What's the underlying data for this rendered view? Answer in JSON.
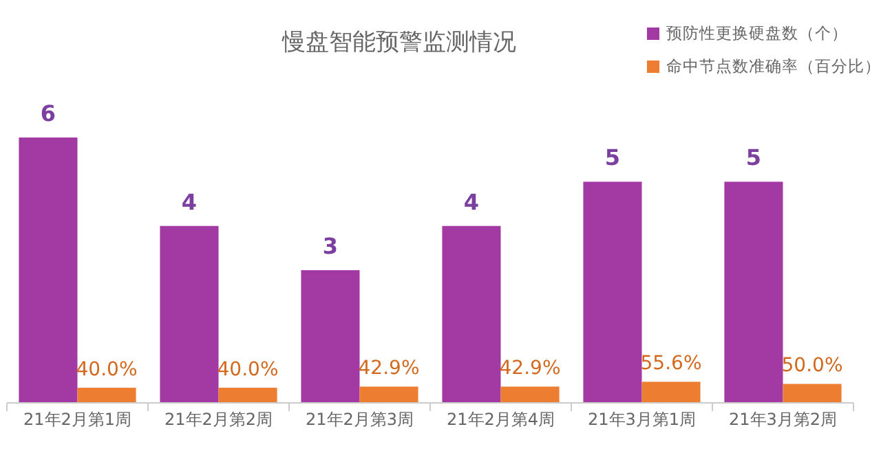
{
  "chart_data": {
    "type": "bar",
    "title": "慢盘智能预警监测情况",
    "categories": [
      "21年2月第1周",
      "21年2月第2周",
      "21年2月第3周",
      "21年2月第4周",
      "21年3月第1周",
      "21年3月第2周"
    ],
    "series": [
      {
        "name": "预防性更换硬盘数（个）",
        "color": "#a33aa3",
        "values": [
          6,
          4,
          3,
          4,
          5,
          5
        ]
      },
      {
        "name": "命中节点数准确率（百分比）",
        "color": "#ed7d31",
        "axis": "y2",
        "values": [
          40.0,
          40.0,
          42.9,
          42.9,
          55.6,
          50.0
        ],
        "value_labels": [
          "40.0%",
          "40.0%",
          "42.9%",
          "42.9%",
          "55.6%",
          "50.0%"
        ]
      }
    ],
    "ylim": [
      0,
      6
    ],
    "y2lim": [
      0,
      700
    ],
    "tick_labels": "x",
    "data_labels": true,
    "legend": "top right",
    "grid": false
  }
}
